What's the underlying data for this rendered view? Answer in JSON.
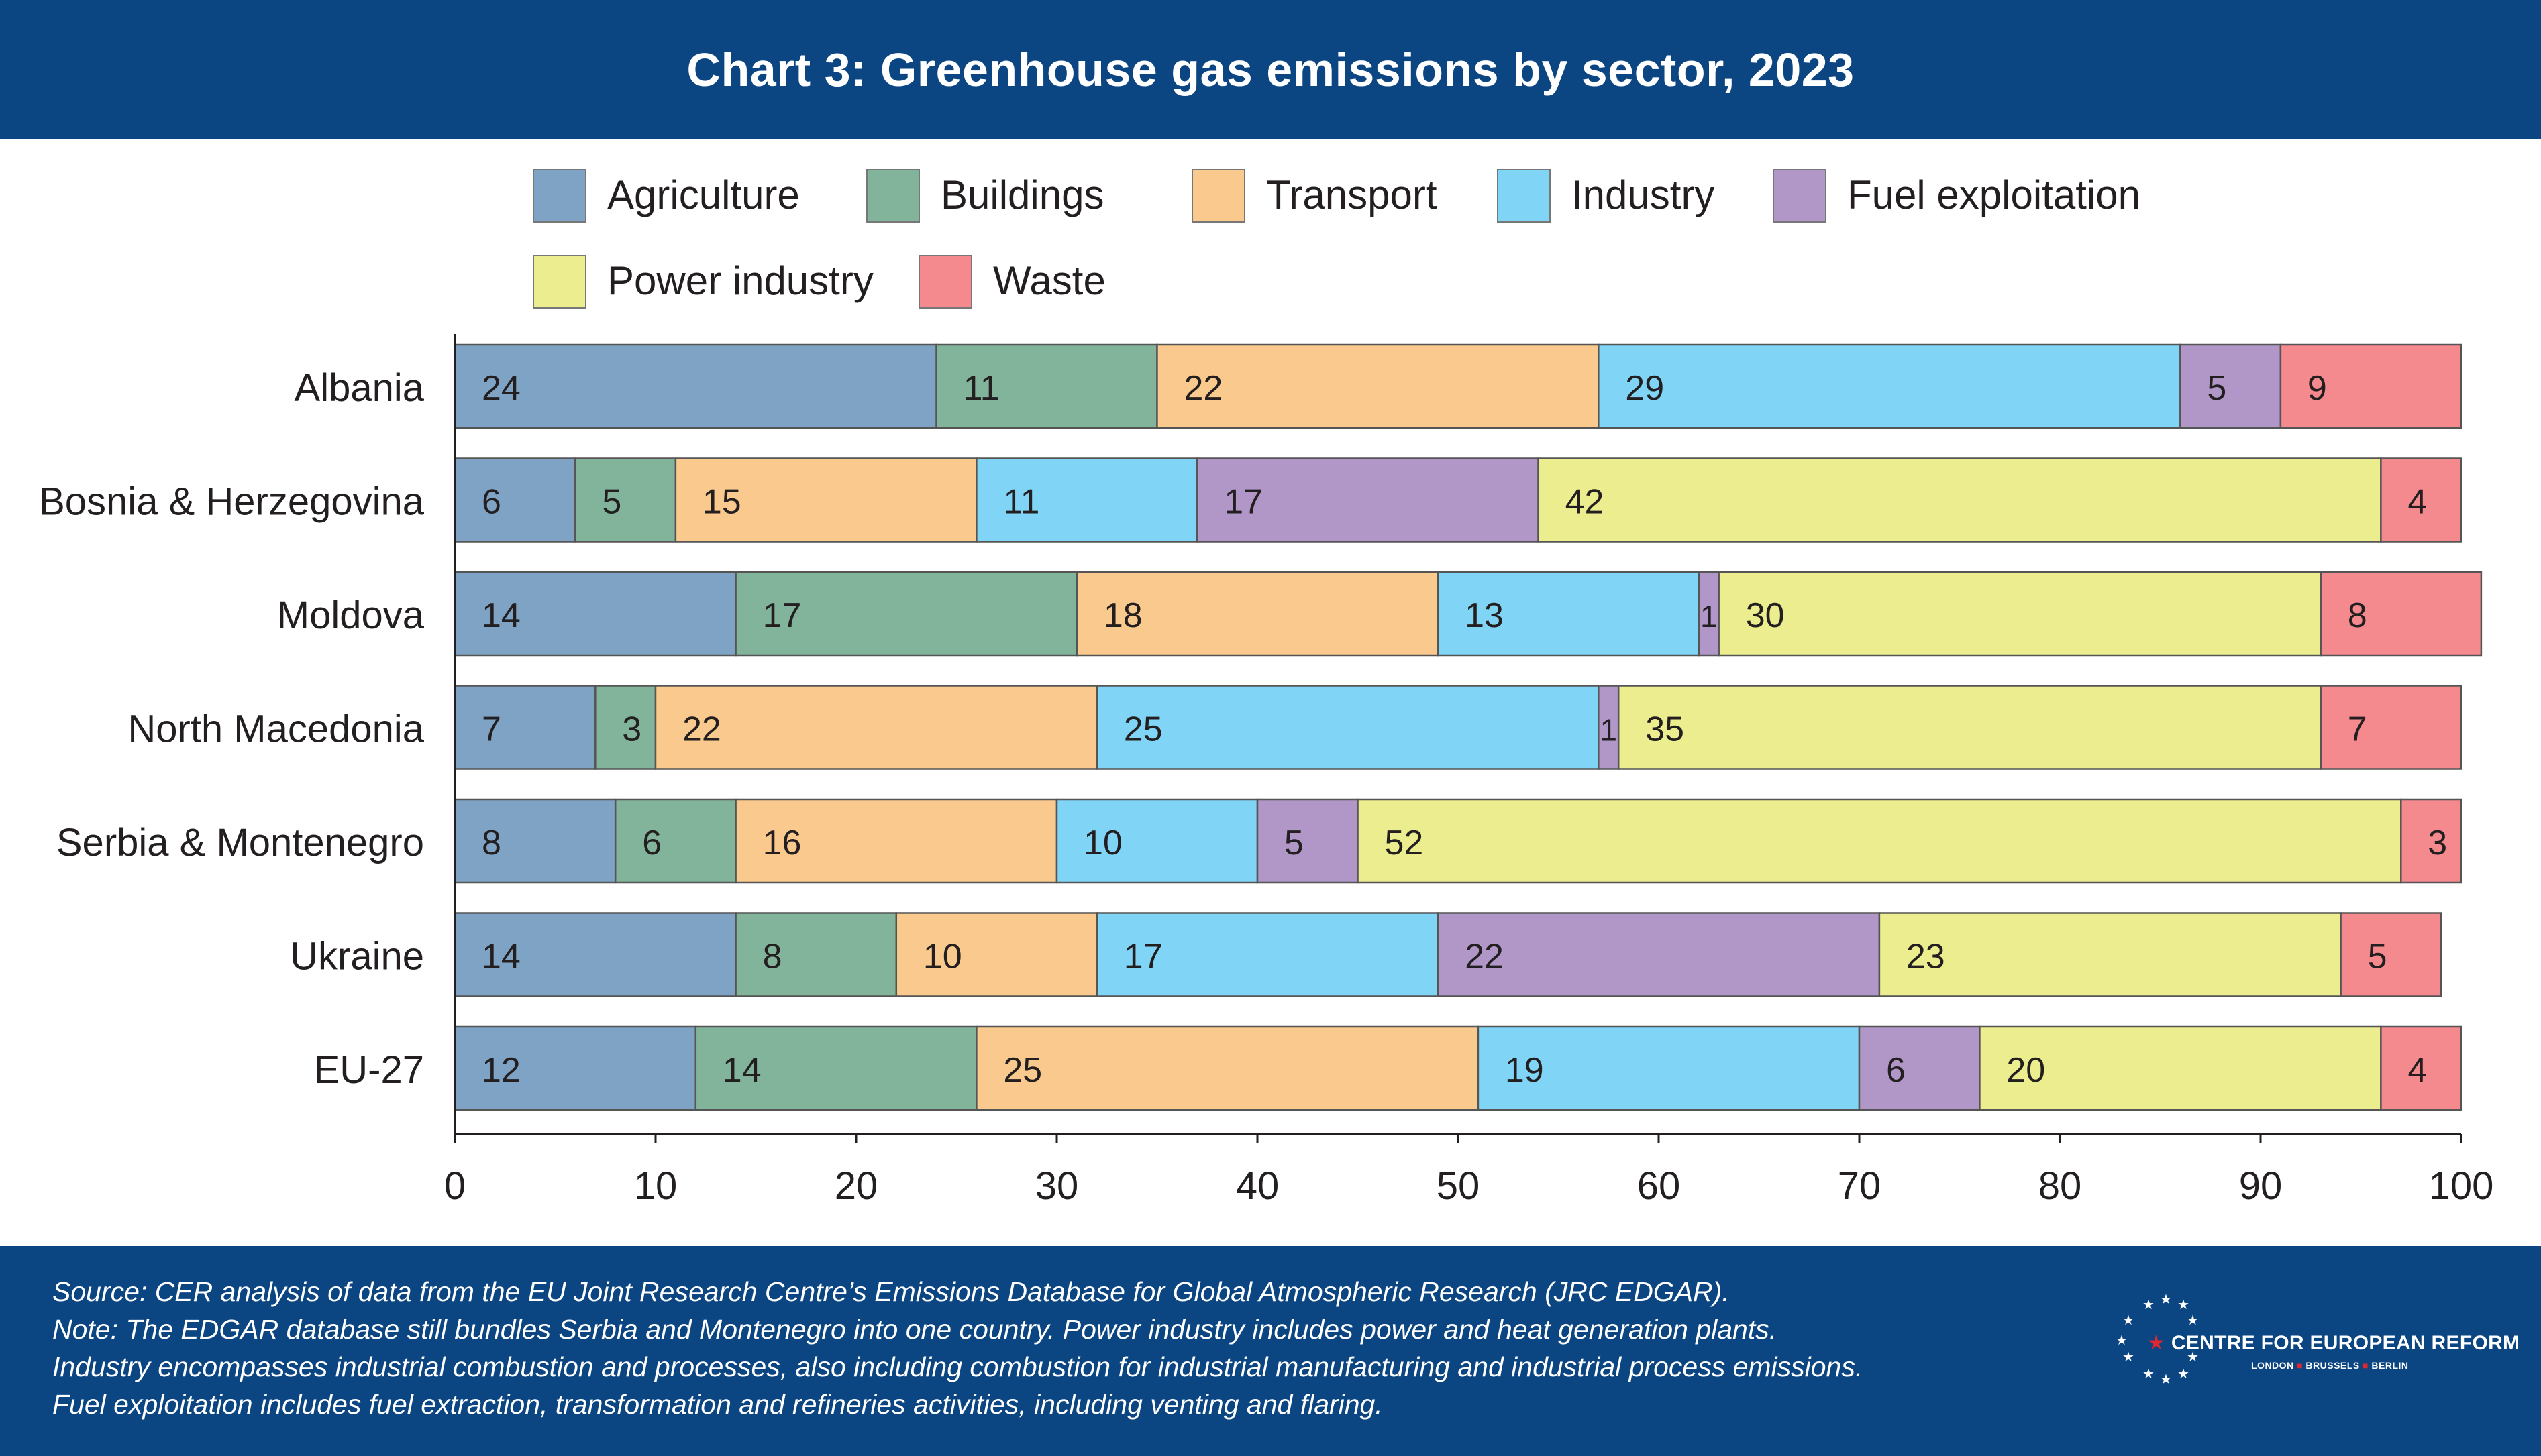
{
  "header": {
    "title": "Chart 3: Greenhouse gas emissions by sector, 2023"
  },
  "chart_data": {
    "type": "bar",
    "orientation": "horizontal",
    "stacked": true,
    "categories": [
      "Albania",
      "Bosnia & Herzegovina",
      "Moldova",
      "North Macedonia",
      "Serbia & Montenegro",
      "Ukraine",
      "EU-27"
    ],
    "series": [
      {
        "name": "Agriculture",
        "color": "#7fa3c4",
        "values": [
          24,
          6,
          14,
          7,
          8,
          14,
          12
        ]
      },
      {
        "name": "Buildings",
        "color": "#82b49c",
        "values": [
          11,
          5,
          17,
          3,
          6,
          8,
          14
        ]
      },
      {
        "name": "Transport",
        "color": "#f9c98d",
        "values": [
          22,
          15,
          18,
          22,
          16,
          10,
          25
        ]
      },
      {
        "name": "Industry",
        "color": "#80d4f6",
        "values": [
          29,
          11,
          13,
          25,
          10,
          17,
          19
        ]
      },
      {
        "name": "Fuel exploitation",
        "color": "#b097c8",
        "values": [
          5,
          17,
          1,
          1,
          5,
          22,
          6
        ]
      },
      {
        "name": "Power industry",
        "color": "#ebed8f",
        "values": [
          0,
          42,
          30,
          35,
          52,
          23,
          20
        ]
      },
      {
        "name": "Waste",
        "color": "#f48a8e",
        "values": [
          9,
          4,
          8,
          7,
          3,
          5,
          4
        ]
      }
    ],
    "legend": {
      "row1": [
        "Agriculture",
        "Buildings",
        "Transport",
        "Industry",
        "Fuel exploitation"
      ],
      "row2": [
        "Power industry",
        "Waste"
      ],
      "placement": "top"
    },
    "xlim": [
      0,
      100
    ],
    "xticks": [
      "0",
      "10",
      "20",
      "30",
      "40",
      "50",
      "60",
      "70",
      "80",
      "90",
      "100"
    ],
    "xlabel": "",
    "ylabel": "",
    "grid": false
  },
  "footer": {
    "notes": [
      "Source: CER analysis of data from the EU Joint Research Centre’s Emissions Database for Global Atmospheric Research (JRC EDGAR).",
      "Note: The EDGAR database still bundles Serbia and Montenegro into one country. Power industry includes power and heat generation plants.",
      "Industry encompasses industrial combustion and processes, also including combustion for industrial manufacturing and industrial process emissions.",
      "Fuel exploitation includes fuel extraction, transformation and refineries activities, including venting and flaring."
    ],
    "logo_name": "CENTRE FOR EUROPEAN REFORM",
    "logo_cities": [
      "LONDON",
      "BRUSSELS",
      "BERLIN"
    ]
  }
}
